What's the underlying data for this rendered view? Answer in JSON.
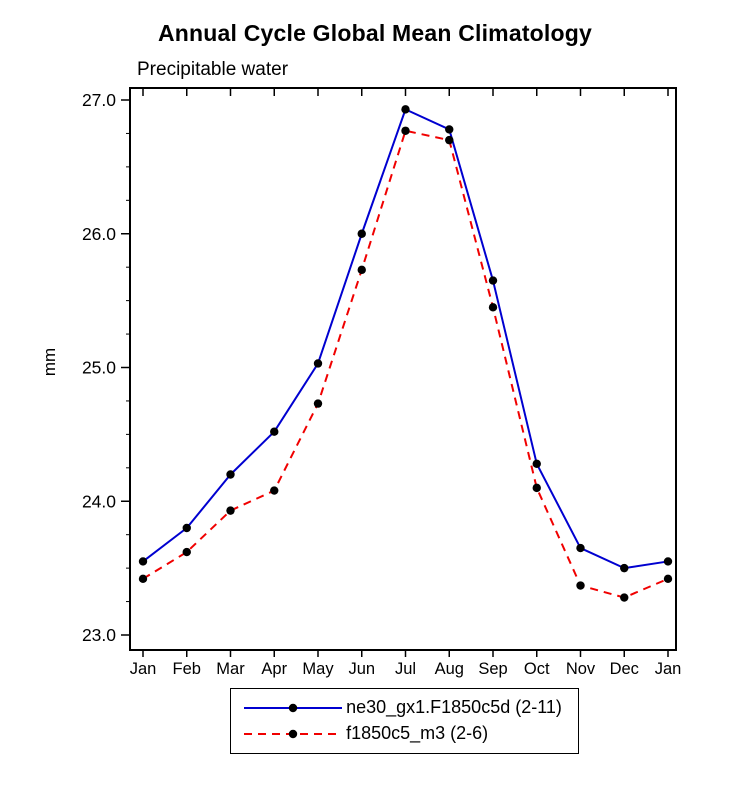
{
  "chart_data": {
    "type": "line",
    "title": "Annual Cycle Global Mean Climatology",
    "subtitle": "Precipitable water",
    "ylabel": "mm",
    "xlabel": "",
    "categories": [
      "Jan",
      "Feb",
      "Mar",
      "Apr",
      "May",
      "Jun",
      "Jul",
      "Aug",
      "Sep",
      "Oct",
      "Nov",
      "Dec",
      "Jan"
    ],
    "ylim": [
      23.0,
      27.0
    ],
    "yticks": [
      23.0,
      24.0,
      25.0,
      26.0,
      27.0
    ],
    "ytick_labels": [
      "23.0",
      "24.0",
      "25.0",
      "26.0",
      "27.0"
    ],
    "grid": false,
    "legend_position": "bottom",
    "series": [
      {
        "name": "ne30_gx1.F1850c5d (2-11)",
        "color": "#0000d0",
        "style": "solid",
        "marker": "circle",
        "marker_color": "#000000",
        "values": [
          23.55,
          23.8,
          24.2,
          24.52,
          25.03,
          26.0,
          26.93,
          26.78,
          25.65,
          24.28,
          23.65,
          23.5,
          23.55
        ]
      },
      {
        "name": "f1850c5_m3 (2-6)",
        "color": "#f00000",
        "style": "dashed",
        "marker": "circle",
        "marker_color": "#000000",
        "values": [
          23.42,
          23.62,
          23.93,
          24.08,
          24.73,
          25.73,
          26.77,
          26.7,
          25.45,
          24.1,
          23.37,
          23.28,
          23.42
        ]
      }
    ]
  }
}
